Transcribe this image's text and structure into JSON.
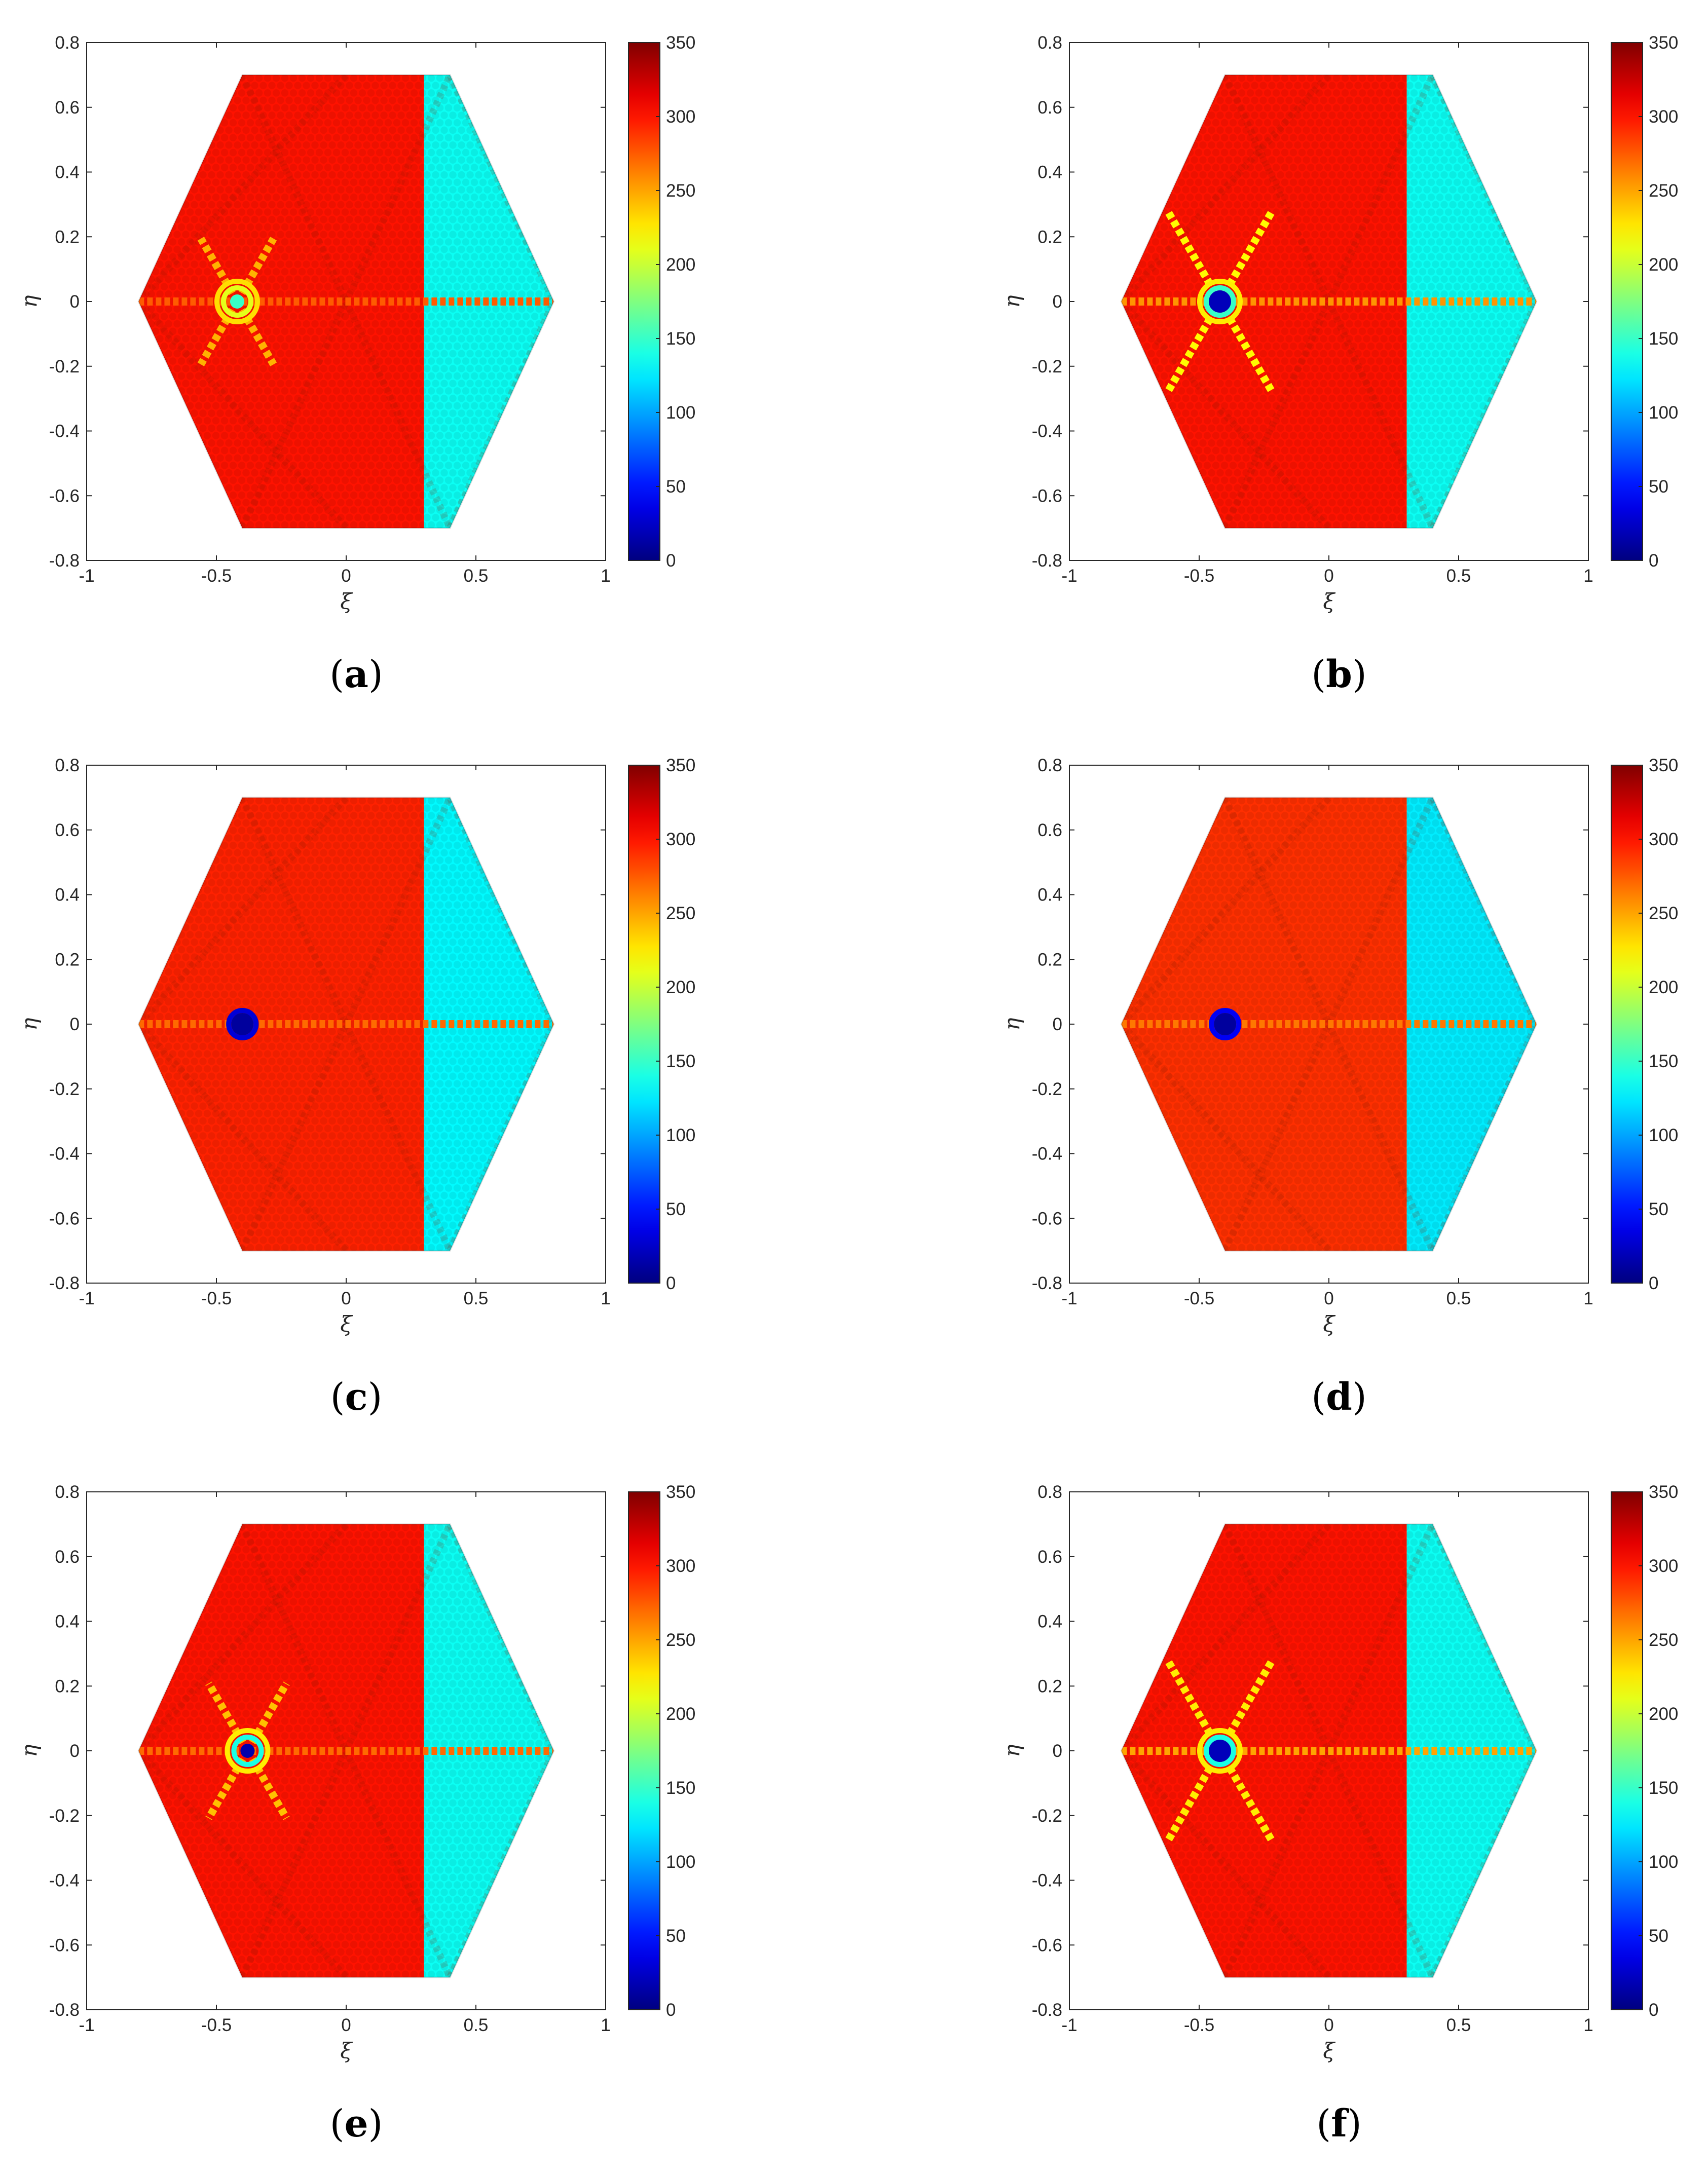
{
  "chart_data": [
    {
      "type": "heatmap",
      "panel_label": "a",
      "xlabel": "ξ",
      "ylabel": "η",
      "xlim": [
        -1,
        1
      ],
      "ylim": [
        -0.8,
        0.8
      ],
      "xticks": [
        "-1",
        "-0.5",
        "0",
        "0.5",
        "1"
      ],
      "yticks": [
        "0.8",
        "0.6",
        "0.4",
        "0.2",
        "0",
        "-0.2",
        "-0.4",
        "-0.6",
        "-0.8"
      ],
      "colorbar": {
        "min": 0,
        "max": 350,
        "ticks": [
          "350",
          "300",
          "250",
          "200",
          "150",
          "100",
          "50",
          "0"
        ],
        "colormap": "jet"
      },
      "domain": {
        "shape": "hexagon",
        "vertices_xi_eta": [
          [
            -0.8,
            0
          ],
          [
            -0.4,
            0.7
          ],
          [
            0.4,
            0.7
          ],
          [
            0.8,
            0
          ],
          [
            0.4,
            -0.7
          ],
          [
            -0.4,
            -0.7
          ]
        ]
      },
      "regions": [
        {
          "xi_from": -0.8,
          "xi_to": 0.3,
          "value": 300
        },
        {
          "xi_from": 0.3,
          "xi_to": 0.8,
          "value": 135
        }
      ],
      "crack": {
        "xi_from": -0.8,
        "xi_to": 0.8,
        "eta": 0,
        "tip_xi": -0.42,
        "line_value": 275
      },
      "tip_feature": {
        "xi": -0.42,
        "eta": 0,
        "values": [
          150,
          210,
          230
        ],
        "ray_value": 245,
        "ray_length": 0.28,
        "dark_core": false
      }
    },
    {
      "type": "heatmap",
      "panel_label": "b",
      "xlabel": "ξ",
      "ylabel": "η",
      "xlim": [
        -1,
        1
      ],
      "ylim": [
        -0.8,
        0.8
      ],
      "xticks": [
        "-1",
        "-0.5",
        "0",
        "0.5",
        "1"
      ],
      "yticks": [
        "0.8",
        "0.6",
        "0.4",
        "0.2",
        "0",
        "-0.2",
        "-0.4",
        "-0.6",
        "-0.8"
      ],
      "colorbar": {
        "min": 0,
        "max": 350,
        "ticks": [
          "350",
          "300",
          "250",
          "200",
          "150",
          "100",
          "50",
          "0"
        ],
        "colormap": "jet"
      },
      "domain": {
        "shape": "hexagon",
        "vertices_xi_eta": [
          [
            -0.8,
            0
          ],
          [
            -0.4,
            0.7
          ],
          [
            0.4,
            0.7
          ],
          [
            0.8,
            0
          ],
          [
            0.4,
            -0.7
          ],
          [
            -0.4,
            -0.7
          ]
        ]
      },
      "regions": [
        {
          "xi_from": -0.8,
          "xi_to": 0.3,
          "value": 300
        },
        {
          "xi_from": 0.3,
          "xi_to": 0.8,
          "value": 135
        }
      ],
      "crack": {
        "xi_from": -0.8,
        "xi_to": 0.8,
        "eta": 0,
        "tip_xi": -0.42,
        "line_value": 255
      },
      "tip_feature": {
        "xi": -0.42,
        "eta": 0,
        "values": [
          20,
          150,
          225
        ],
        "ray_value": 220,
        "ray_length": 0.4,
        "dark_core": true
      }
    },
    {
      "type": "heatmap",
      "panel_label": "c",
      "xlabel": "ξ",
      "ylabel": "η",
      "xlim": [
        -1,
        1
      ],
      "ylim": [
        -0.8,
        0.8
      ],
      "xticks": [
        "-1",
        "-0.5",
        "0",
        "0.5",
        "1"
      ],
      "yticks": [
        "0.8",
        "0.6",
        "0.4",
        "0.2",
        "0",
        "-0.2",
        "-0.4",
        "-0.6",
        "-0.8"
      ],
      "colorbar": {
        "min": 0,
        "max": 350,
        "ticks": [
          "350",
          "300",
          "250",
          "200",
          "150",
          "100",
          "50",
          "0"
        ],
        "colormap": "jet"
      },
      "domain": {
        "shape": "hexagon",
        "vertices_xi_eta": [
          [
            -0.8,
            0
          ],
          [
            -0.4,
            0.7
          ],
          [
            0.4,
            0.7
          ],
          [
            0.8,
            0
          ],
          [
            0.4,
            -0.7
          ],
          [
            -0.4,
            -0.7
          ]
        ]
      },
      "regions": [
        {
          "xi_from": -0.8,
          "xi_to": 0.3,
          "value": 295
        },
        {
          "xi_from": 0.3,
          "xi_to": 0.8,
          "value": 130
        }
      ],
      "crack": {
        "xi_from": -0.8,
        "xi_to": 0.8,
        "eta": 0,
        "tip_xi": -0.4,
        "line_value": 270
      },
      "tip_feature": {
        "xi": -0.4,
        "eta": 0,
        "values": [
          10,
          30
        ],
        "ray_value": 0,
        "ray_length": 0,
        "dark_core": true
      }
    },
    {
      "type": "heatmap",
      "panel_label": "d",
      "xlabel": "ξ",
      "ylabel": "η",
      "xlim": [
        -1,
        1
      ],
      "ylim": [
        -0.8,
        0.8
      ],
      "xticks": [
        "-1",
        "-0.5",
        "0",
        "0.5",
        "1"
      ],
      "yticks": [
        "0.8",
        "0.6",
        "0.4",
        "0.2",
        "0",
        "-0.2",
        "-0.4",
        "-0.6",
        "-0.8"
      ],
      "colorbar": {
        "min": 0,
        "max": 350,
        "ticks": [
          "350",
          "300",
          "250",
          "200",
          "150",
          "100",
          "50",
          "0"
        ],
        "colormap": "jet"
      },
      "domain": {
        "shape": "hexagon",
        "vertices_xi_eta": [
          [
            -0.8,
            0
          ],
          [
            -0.4,
            0.7
          ],
          [
            0.4,
            0.7
          ],
          [
            0.8,
            0
          ],
          [
            0.4,
            -0.7
          ],
          [
            -0.4,
            -0.7
          ]
        ]
      },
      "regions": [
        {
          "xi_from": -0.8,
          "xi_to": 0.3,
          "value": 290
        },
        {
          "xi_from": 0.3,
          "xi_to": 0.8,
          "value": 125
        }
      ],
      "crack": {
        "xi_from": -0.8,
        "xi_to": 0.8,
        "eta": 0,
        "tip_xi": -0.4,
        "line_value": 265
      },
      "tip_feature": {
        "xi": -0.4,
        "eta": 0,
        "values": [
          10,
          40
        ],
        "ray_value": 0,
        "ray_length": 0,
        "dark_core": true
      }
    },
    {
      "type": "heatmap",
      "panel_label": "e",
      "xlabel": "ξ",
      "ylabel": "η",
      "xlim": [
        -1,
        1
      ],
      "ylim": [
        -0.8,
        0.8
      ],
      "xticks": [
        "-1",
        "-0.5",
        "0",
        "0.5",
        "1"
      ],
      "yticks": [
        "0.8",
        "0.6",
        "0.4",
        "0.2",
        "0",
        "-0.2",
        "-0.4",
        "-0.6",
        "-0.8"
      ],
      "colorbar": {
        "min": 0,
        "max": 350,
        "ticks": [
          "350",
          "300",
          "250",
          "200",
          "150",
          "100",
          "50",
          "0"
        ],
        "colormap": "jet"
      },
      "domain": {
        "shape": "hexagon",
        "vertices_xi_eta": [
          [
            -0.8,
            0
          ],
          [
            -0.4,
            0.7
          ],
          [
            0.4,
            0.7
          ],
          [
            0.8,
            0
          ],
          [
            0.4,
            -0.7
          ],
          [
            -0.4,
            -0.7
          ]
        ]
      },
      "regions": [
        {
          "xi_from": -0.8,
          "xi_to": 0.3,
          "value": 300
        },
        {
          "xi_from": 0.3,
          "xi_to": 0.8,
          "value": 135
        }
      ],
      "crack": {
        "xi_from": -0.8,
        "xi_to": 0.8,
        "eta": 0,
        "tip_xi": -0.38,
        "line_value": 270
      },
      "tip_feature": {
        "xi": -0.38,
        "eta": 0,
        "values": [
          15,
          140,
          225
        ],
        "ray_value": 240,
        "ray_length": 0.3,
        "dark_core": false
      }
    },
    {
      "type": "heatmap",
      "panel_label": "f",
      "xlabel": "ξ",
      "ylabel": "η",
      "xlim": [
        -1,
        1
      ],
      "ylim": [
        -0.8,
        0.8
      ],
      "xticks": [
        "-1",
        "-0.5",
        "0",
        "0.5",
        "1"
      ],
      "yticks": [
        "0.8",
        "0.6",
        "0.4",
        "0.2",
        "0",
        "-0.2",
        "-0.4",
        "-0.6",
        "-0.8"
      ],
      "colorbar": {
        "min": 0,
        "max": 350,
        "ticks": [
          "350",
          "300",
          "250",
          "200",
          "150",
          "100",
          "50",
          "0"
        ],
        "colormap": "jet"
      },
      "domain": {
        "shape": "hexagon",
        "vertices_xi_eta": [
          [
            -0.8,
            0
          ],
          [
            -0.4,
            0.7
          ],
          [
            0.4,
            0.7
          ],
          [
            0.8,
            0
          ],
          [
            0.4,
            -0.7
          ],
          [
            -0.4,
            -0.7
          ]
        ]
      },
      "regions": [
        {
          "xi_from": -0.8,
          "xi_to": 0.3,
          "value": 300
        },
        {
          "xi_from": 0.3,
          "xi_to": 0.8,
          "value": 135
        }
      ],
      "crack": {
        "xi_from": -0.8,
        "xi_to": 0.8,
        "eta": 0,
        "tip_xi": -0.42,
        "line_value": 250
      },
      "tip_feature": {
        "xi": -0.42,
        "eta": 0,
        "values": [
          20,
          140,
          225
        ],
        "ray_value": 225,
        "ray_length": 0.4,
        "dark_core": true
      }
    }
  ]
}
